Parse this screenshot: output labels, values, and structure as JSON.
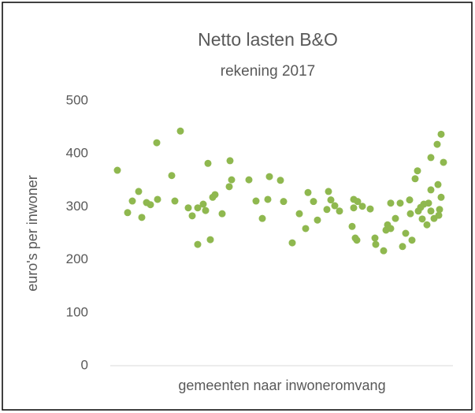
{
  "chart_data": {
    "type": "scatter",
    "title": "Netto lasten B&O",
    "subtitle": "rekening 2017",
    "y_label": "euro's per inwoner",
    "x_label": "gemeenten naar inwoneromvang",
    "color": "#8fb84f",
    "x": [
      9,
      22,
      28,
      36,
      40,
      46,
      51,
      59,
      60,
      78,
      82,
      89,
      99,
      104,
      111,
      111,
      118,
      121,
      124,
      127,
      130,
      133,
      142,
      151,
      152,
      154,
      176,
      185,
      193,
      200,
      202,
      216,
      220,
      231,
      240,
      248,
      251,
      258,
      263,
      275,
      277,
      280,
      285,
      291,
      307,
      309,
      309,
      311,
      313,
      314,
      320,
      330,
      336,
      337,
      347,
      350,
      352,
      356,
      356,
      362,
      368,
      371,
      375,
      380,
      381,
      383,
      387,
      390,
      391,
      394,
      396,
      398,
      402,
      404,
      407,
      407,
      407,
      411,
      415,
      416,
      417,
      418,
      420,
      420,
      423
    ],
    "values": [
      369,
      289,
      311,
      329,
      280,
      308,
      304,
      421,
      314,
      359,
      311,
      443,
      298,
      283,
      229,
      298,
      305,
      293,
      382,
      238,
      318,
      323,
      287,
      338,
      387,
      351,
      351,
      311,
      278,
      314,
      357,
      350,
      310,
      232,
      287,
      259,
      327,
      310,
      275,
      295,
      329,
      313,
      302,
      292,
      263,
      298,
      314,
      241,
      237,
      310,
      301,
      296,
      241,
      229,
      217,
      256,
      266,
      307,
      259,
      278,
      307,
      225,
      250,
      313,
      287,
      237,
      353,
      368,
      292,
      299,
      277,
      305,
      266,
      307,
      292,
      332,
      393,
      278,
      418,
      342,
      284,
      295,
      318,
      437,
      384
    ],
    "xlim": [
      0,
      435
    ],
    "ylim": [
      0,
      500
    ],
    "yticks": [
      0,
      100,
      200,
      300,
      400,
      500
    ]
  }
}
